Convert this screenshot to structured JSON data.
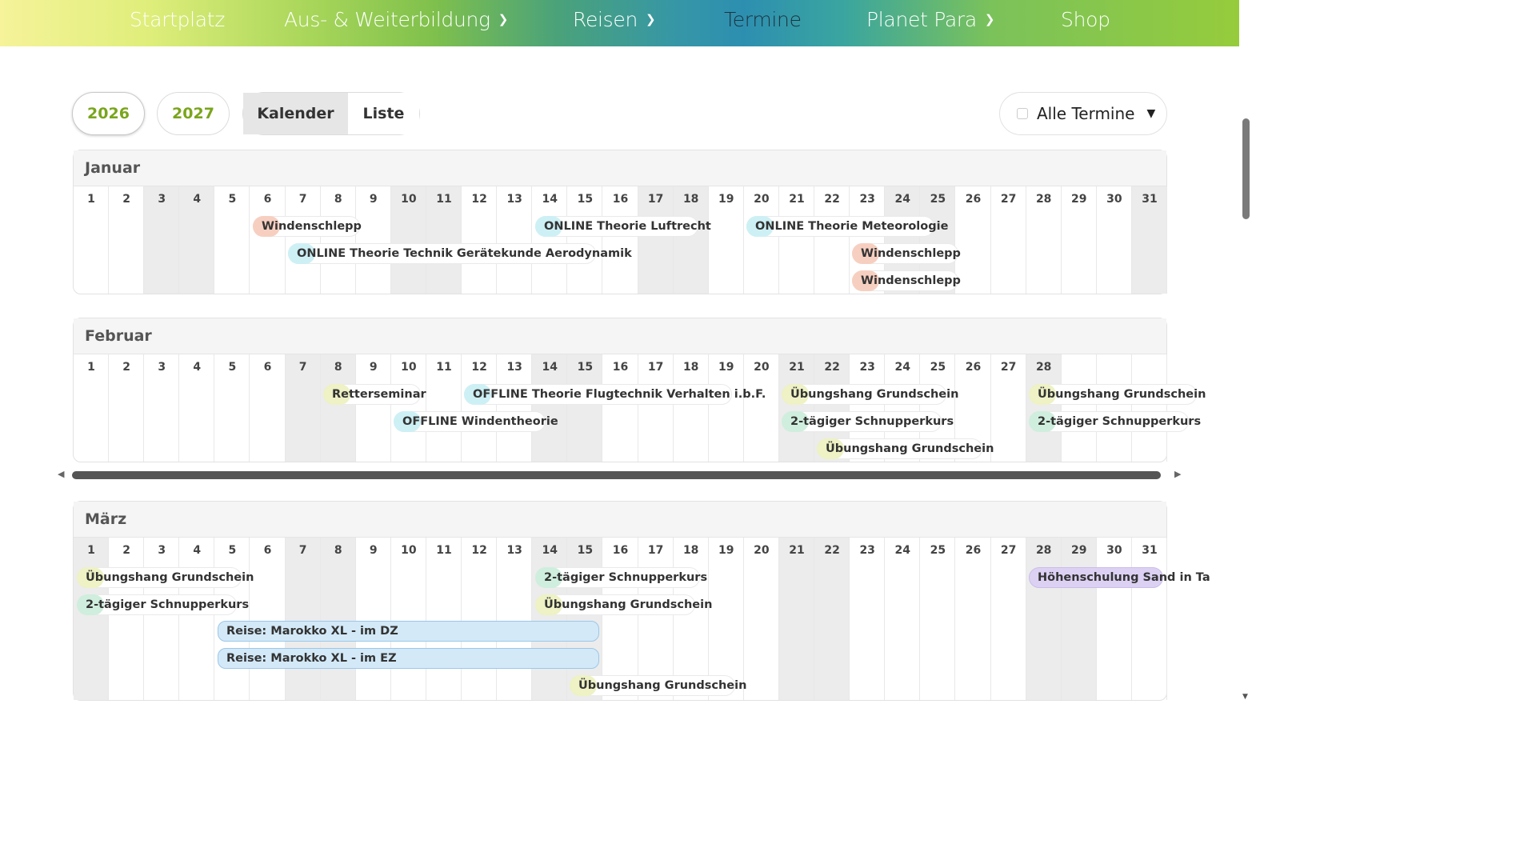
{
  "nav": [
    {
      "label": "Startplatz",
      "dropdown": false
    },
    {
      "label": "Aus- & Weiterbildung",
      "dropdown": true
    },
    {
      "label": "Reisen",
      "dropdown": true
    },
    {
      "label": "Termine",
      "dropdown": false
    },
    {
      "label": "Planet Para",
      "dropdown": true
    },
    {
      "label": "Shop",
      "dropdown": false
    }
  ],
  "controls": {
    "years": [
      "2026",
      "2027"
    ],
    "view_active": "Kalender",
    "view_other": "Liste",
    "filter_label": "Alle Termine"
  },
  "months": [
    {
      "name": "Januar",
      "days": 31,
      "events": [
        {
          "label": "Windenschlepp",
          "type": "red"
        },
        {
          "label": "ONLINE Theorie Technik Gerätekunde Aerodynamik",
          "type": "cyan"
        },
        {
          "label": "ONLINE Theorie Luftrecht",
          "type": "cyan"
        },
        {
          "label": "ONLINE Theorie Meteorologie",
          "type": "cyan"
        },
        {
          "label": "Windenschlepp",
          "type": "red"
        },
        {
          "label": "Windenschlepp",
          "type": "red"
        }
      ]
    },
    {
      "name": "Februar",
      "days": 28,
      "events": [
        {
          "label": "Retterseminar",
          "type": "yellow"
        },
        {
          "label": "OFFLINE Windentheorie",
          "type": "cyan"
        },
        {
          "label": "OFFLINE Theorie Flugtechnik Verhalten i.b.F.",
          "type": "cyan"
        },
        {
          "label": "Übungshang Grundschein",
          "type": "yellow"
        },
        {
          "label": "2-tägiger Schnupperkurs",
          "type": "green"
        },
        {
          "label": "Übungshang Grundschein",
          "type": "yellow"
        },
        {
          "label": "Übungshang Grundschein",
          "type": "yellow"
        },
        {
          "label": "2-tägiger Schnupperkurs",
          "type": "green"
        }
      ]
    },
    {
      "name": "März",
      "days": 31,
      "events": [
        {
          "label": "Übungshang Grundschein",
          "type": "yellow"
        },
        {
          "label": "2-tägiger Schnupperkurs",
          "type": "green"
        },
        {
          "label": "Reise: Marokko XL - im DZ",
          "type": "blue"
        },
        {
          "label": "Reise: Marokko XL - im EZ",
          "type": "blue"
        },
        {
          "label": "Übungshang Grundschein",
          "type": "yellow"
        },
        {
          "label": "2-tägiger Schnupperkurs",
          "type": "green"
        },
        {
          "label": "Übungshang Grundschein",
          "type": "yellow"
        },
        {
          "label": "Höhenschulung Sand in Ta",
          "type": "purple"
        }
      ]
    }
  ]
}
